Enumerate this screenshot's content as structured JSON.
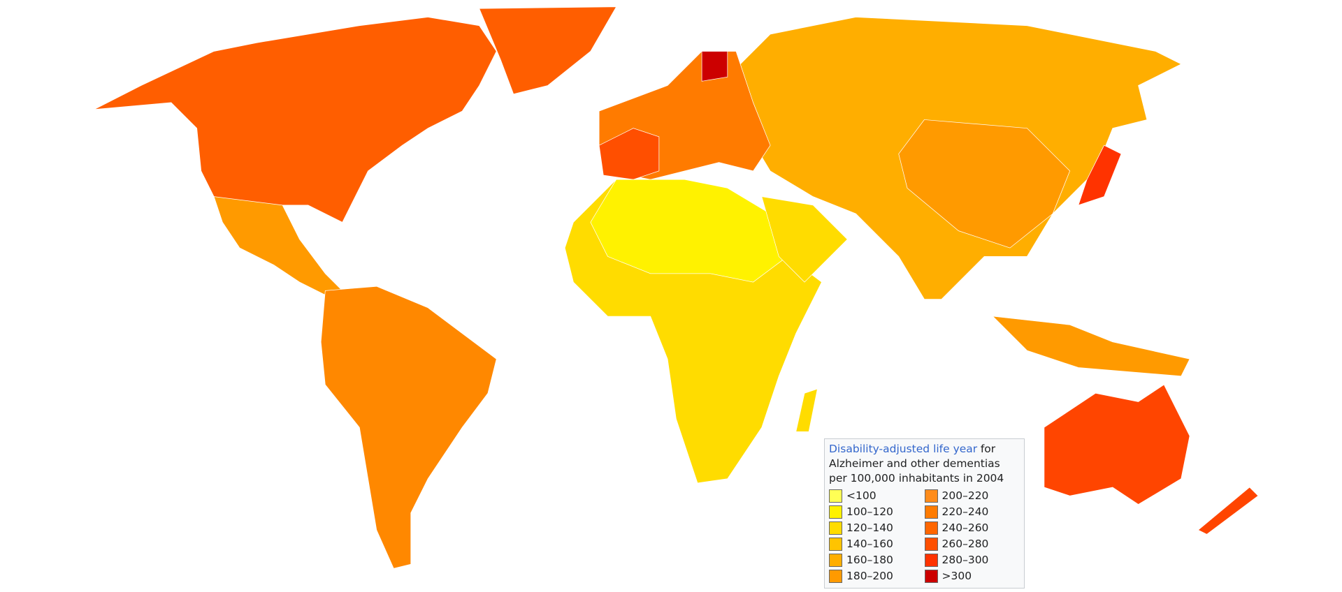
{
  "legend": {
    "title_link": "Disability-adjusted life year",
    "title_rest": "for Alzheimer and other dementias per 100,000 inhabitants in 2004",
    "items": [
      {
        "label": "<100",
        "color": "#ffff55"
      },
      {
        "label": "100–120",
        "color": "#fff200"
      },
      {
        "label": "120–140",
        "color": "#ffdc00"
      },
      {
        "label": "140–160",
        "color": "#ffc400"
      },
      {
        "label": "160–180",
        "color": "#ffae00"
      },
      {
        "label": "180–200",
        "color": "#ff9a00"
      },
      {
        "label": "200–220",
        "color": "#ff8c1a"
      },
      {
        "label": "220–240",
        "color": "#ff7b00"
      },
      {
        "label": "240–260",
        "color": "#ff6600"
      },
      {
        "label": "260–280",
        "color": "#ff4f00"
      },
      {
        "label": "280–300",
        "color": "#ff3300"
      },
      {
        "label": ">300",
        "color": "#cc0000"
      }
    ]
  }
}
